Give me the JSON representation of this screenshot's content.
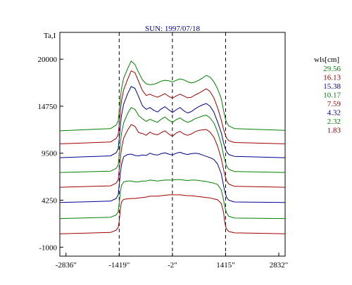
{
  "chart_data": {
    "type": "line",
    "title": "SUN: 1997/07/18",
    "ylabel": "Ta,I",
    "xlabel": "",
    "xlim": [
      -3000,
      3000
    ],
    "ylim": [
      -2000,
      23000
    ],
    "x_ticks": [
      {
        "value": -2836,
        "label": "-2836\""
      },
      {
        "value": -1419,
        "label": "-1419\""
      },
      {
        "value": -2,
        "label": "-2\""
      },
      {
        "value": 1415,
        "label": "1415\""
      },
      {
        "value": 2832,
        "label": "2832\""
      }
    ],
    "y_ticks": [
      {
        "value": 20000,
        "label": "20000"
      },
      {
        "value": 14750,
        "label": "14750"
      },
      {
        "value": 9500,
        "label": "9500"
      },
      {
        "value": 4250,
        "label": "4250"
      },
      {
        "value": -1000,
        "label": "-1000"
      }
    ],
    "vlines": [
      -1419,
      -2,
      1415
    ],
    "legend_title": "wls[cm]",
    "legend_position": "right",
    "grid": false,
    "shape_x": [
      -3000,
      -1650,
      -1500,
      -1445,
      -1419,
      -1390,
      -1360,
      -1300,
      -1200,
      -1100,
      -1000,
      -900,
      -800,
      -700,
      -600,
      -500,
      -400,
      -300,
      -200,
      -100,
      0,
      100,
      200,
      300,
      400,
      500,
      600,
      700,
      800,
      900,
      1000,
      1100,
      1200,
      1300,
      1360,
      1390,
      1415,
      1445,
      1500,
      1650,
      3000
    ],
    "series": [
      {
        "name": "29.56",
        "color": "#008000",
        "baseline": 12000,
        "y": [
          12000,
          12250,
          12650,
          13100,
          14200,
          15500,
          16700,
          17900,
          18900,
          19800,
          19400,
          18500,
          17700,
          17250,
          17150,
          17200,
          17350,
          17550,
          17650,
          17600,
          17450,
          17650,
          17800,
          17700,
          17500,
          17350,
          17450,
          17650,
          17900,
          18200,
          18000,
          17500,
          16700,
          15600,
          14300,
          13700,
          13250,
          12900,
          12550,
          12250,
          12050
        ]
      },
      {
        "name": "16.13",
        "color": "#a00000",
        "baseline": 10550,
        "y": [
          10550,
          10750,
          11150,
          11600,
          12700,
          14100,
          15300,
          16600,
          17700,
          18700,
          18500,
          17500,
          16500,
          15950,
          16100,
          15900,
          15750,
          15950,
          16150,
          15850,
          15650,
          15900,
          16100,
          15900,
          15700,
          15750,
          16000,
          16200,
          16450,
          16700,
          16400,
          15700,
          14600,
          13200,
          12200,
          11800,
          11450,
          11150,
          10900,
          10700,
          10550
        ]
      },
      {
        "name": "15.38",
        "color": "#000090",
        "baseline": 9000,
        "y": [
          9000,
          9200,
          9550,
          10000,
          11100,
          12500,
          13700,
          15000,
          16100,
          16950,
          16750,
          15800,
          14800,
          14400,
          14600,
          14300,
          14100,
          14450,
          14700,
          14350,
          14050,
          14350,
          14600,
          14250,
          14000,
          14150,
          14450,
          14700,
          14900,
          15050,
          14750,
          14100,
          13000,
          11800,
          10700,
          10250,
          9900,
          9650,
          9350,
          9150,
          9000
        ]
      },
      {
        "name": "10.17",
        "color": "#008000",
        "baseline": 7350,
        "y": [
          7350,
          7500,
          7800,
          8200,
          9300,
          10600,
          11700,
          12900,
          13900,
          14600,
          14400,
          13700,
          13350,
          13050,
          13300,
          13100,
          12950,
          13300,
          13550,
          13200,
          12950,
          13250,
          13450,
          13150,
          12950,
          13100,
          13350,
          13500,
          13650,
          13750,
          13450,
          12900,
          11900,
          10500,
          9300,
          8800,
          8400,
          8050,
          7700,
          7450,
          7350
        ]
      },
      {
        "name": "7.59",
        "color": "#a00000",
        "baseline": 5700,
        "y": [
          5700,
          5850,
          6150,
          6550,
          7600,
          8900,
          10000,
          11200,
          12050,
          12700,
          12500,
          11800,
          11700,
          11500,
          11850,
          11650,
          11550,
          11800,
          12000,
          11650,
          11400,
          11750,
          11950,
          11650,
          11500,
          11650,
          11900,
          12050,
          12100,
          12150,
          11850,
          11300,
          10300,
          8900,
          7700,
          7150,
          6750,
          6400,
          6050,
          5800,
          5700
        ]
      },
      {
        "name": "4.32",
        "color": "#000090",
        "baseline": 4000,
        "y": [
          4000,
          4150,
          4450,
          4850,
          5900,
          7200,
          8200,
          9100,
          9350,
          9400,
          9250,
          9200,
          9300,
          9250,
          9500,
          9350,
          9300,
          9450,
          9550,
          9400,
          9300,
          9500,
          9600,
          9450,
          9350,
          9450,
          9500,
          9450,
          9300,
          9150,
          9000,
          8800,
          8300,
          7200,
          5900,
          5300,
          4900,
          4550,
          4250,
          4050,
          4000
        ]
      },
      {
        "name": "2.32",
        "color": "#008000",
        "baseline": 2200,
        "y": [
          2200,
          2350,
          2600,
          2950,
          3900,
          5100,
          5900,
          6300,
          6400,
          6400,
          6300,
          6300,
          6400,
          6400,
          6500,
          6450,
          6400,
          6450,
          6500,
          6500,
          6500,
          6550,
          6550,
          6500,
          6450,
          6500,
          6500,
          6450,
          6400,
          6350,
          6250,
          6150,
          6000,
          5400,
          4300,
          3600,
          3150,
          2800,
          2450,
          2250,
          2200
        ]
      },
      {
        "name": "1.83",
        "color": "#a00000",
        "baseline": 500,
        "y": [
          500,
          650,
          900,
          1200,
          1900,
          3200,
          4050,
          4350,
          4400,
          4450,
          4450,
          4500,
          4550,
          4600,
          4700,
          4700,
          4700,
          4750,
          4800,
          4850,
          4850,
          4850,
          4850,
          4800,
          4750,
          4750,
          4700,
          4650,
          4600,
          4550,
          4500,
          4400,
          4300,
          3900,
          2900,
          1900,
          1300,
          1000,
          750,
          600,
          500
        ]
      }
    ]
  }
}
